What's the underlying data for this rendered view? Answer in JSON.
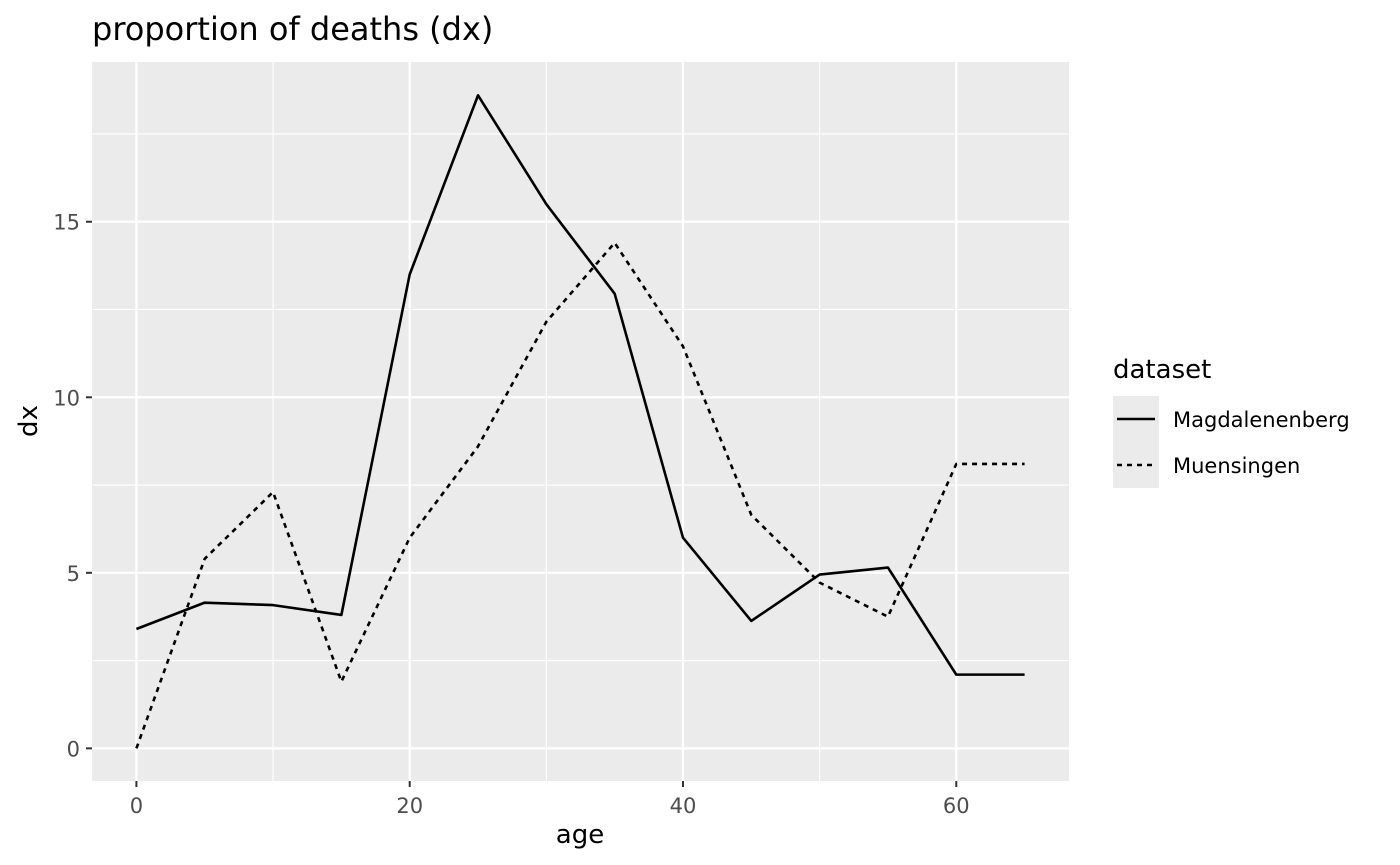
{
  "chart_data": {
    "type": "line",
    "title": "proportion of deaths (dx)",
    "xlabel": "age",
    "ylabel": "dx",
    "xlim": [
      -3.25,
      68.25
    ],
    "ylim": [
      -0.93,
      19.55
    ],
    "x_ticks": [
      0,
      20,
      40,
      60
    ],
    "x_tick_labels": [
      "0",
      "20",
      "40",
      "60"
    ],
    "x_minor_ticks": [
      10,
      30,
      50
    ],
    "y_ticks": [
      0,
      5,
      10,
      15
    ],
    "y_tick_labels": [
      "0",
      "5",
      "10",
      "15"
    ],
    "y_minor_ticks": [
      2.5,
      7.5,
      12.5,
      17.5
    ],
    "grid": true,
    "panel_background": "#ebebeb",
    "grid_color": "#ffffff",
    "legend": {
      "title": "dataset",
      "position": "right"
    },
    "x": [
      0,
      5,
      10,
      15,
      20,
      25,
      30,
      35,
      40,
      45,
      50,
      55,
      60,
      65
    ],
    "series": [
      {
        "name": "Magdalenenberg",
        "linetype": "solid",
        "color": "#000000",
        "values": [
          3.4,
          4.15,
          4.08,
          3.8,
          13.5,
          18.6,
          15.5,
          12.95,
          6.0,
          3.63,
          4.95,
          5.15,
          2.1,
          2.1
        ]
      },
      {
        "name": "Muensingen",
        "linetype": "dotted",
        "color": "#000000",
        "values": [
          0.0,
          5.4,
          7.3,
          1.9,
          6.0,
          8.6,
          12.15,
          14.4,
          11.45,
          6.65,
          4.72,
          3.75,
          8.1,
          8.1
        ]
      }
    ]
  }
}
